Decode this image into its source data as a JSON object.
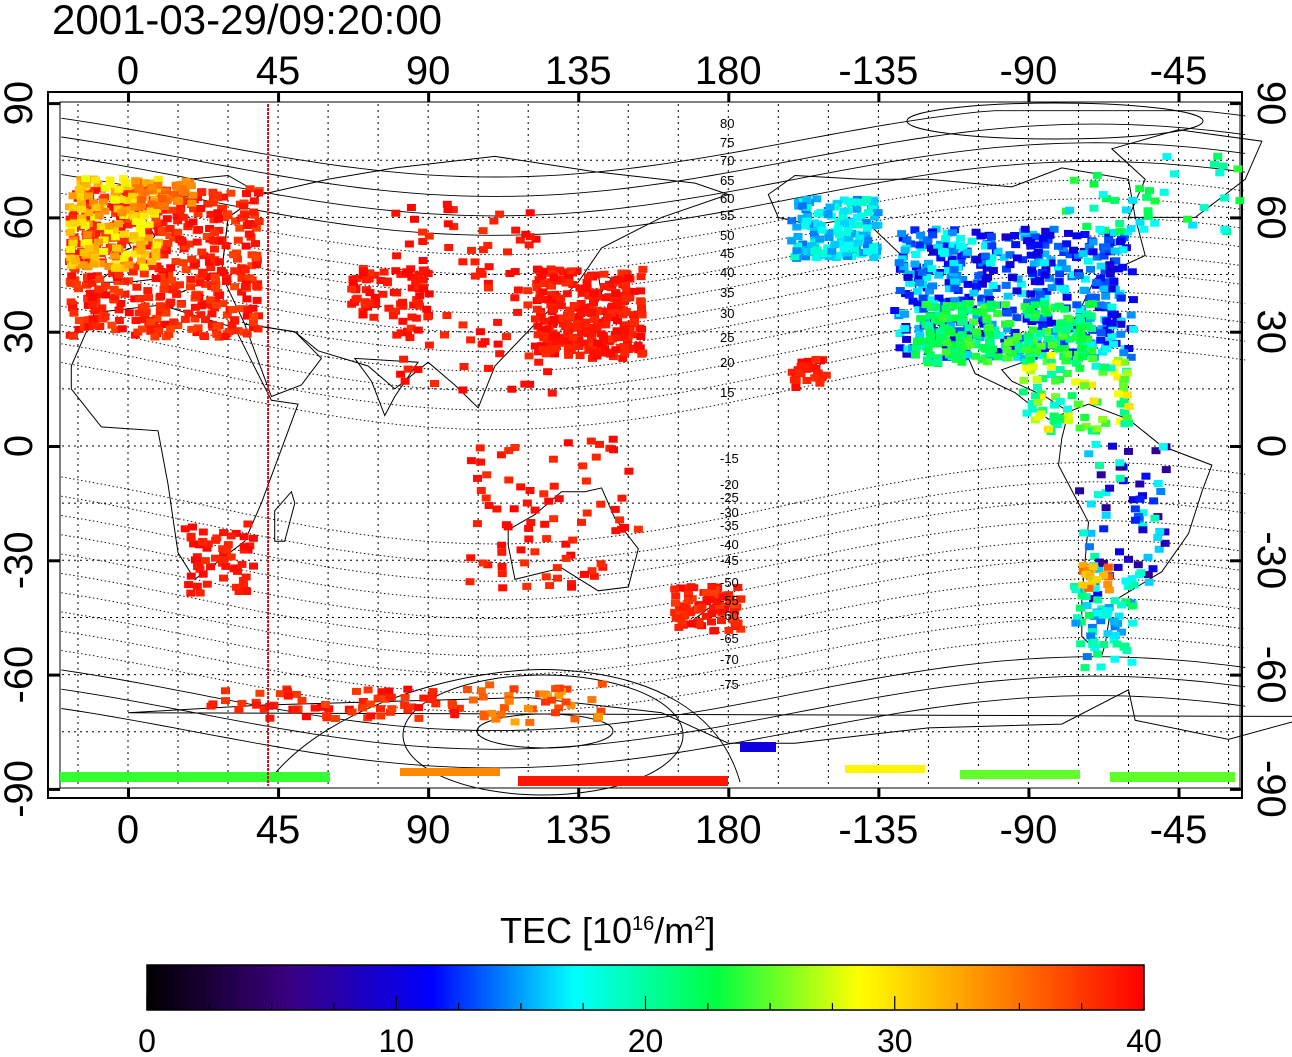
{
  "title": "2001-03-29/09:20:00",
  "map": {
    "lon_ticks_top": [
      "0",
      "45",
      "90",
      "135",
      "180",
      "-135",
      "-90",
      "-45"
    ],
    "lon_ticks_bottom": [
      "0",
      "45",
      "90",
      "135",
      "180",
      "-135",
      "-90",
      "-45"
    ],
    "lat_ticks": [
      "90",
      "60",
      "30",
      "0",
      "-30",
      "-60",
      "-90"
    ],
    "lat_labels_left": [
      "90",
      "60",
      "30",
      "0",
      "-30",
      "-60",
      "-90"
    ],
    "lat_labels_right": [
      "90",
      "60",
      "30",
      "0",
      "-30",
      "-60",
      "-90"
    ],
    "contour_labels": [
      "80",
      "75",
      "70",
      "65",
      "60",
      "55",
      "50",
      "45",
      "40",
      "35",
      "30",
      "25",
      "20",
      "15",
      "-15",
      "-20",
      "-25",
      "-30",
      "-35",
      "-40",
      "-45",
      "-50",
      "-55",
      "-60",
      "-65",
      "-70",
      "-75"
    ],
    "terminator_longitude": 42,
    "colors": {
      "frame": "#000000",
      "terminator": "#d01010"
    }
  },
  "colorbar": {
    "label_main": "TEC  [10",
    "label_exp1": "16",
    "label_mid": "/m",
    "label_exp2": "2",
    "label_end": "]",
    "tick_labels": [
      "0",
      "10",
      "20",
      "30",
      "40"
    ],
    "min": 0,
    "max": 40,
    "stops": [
      "#000000",
      "#3a0080",
      "#0000ff",
      "#00ffff",
      "#00ff40",
      "#ffff00",
      "#ff8000",
      "#ff0000"
    ]
  }
}
